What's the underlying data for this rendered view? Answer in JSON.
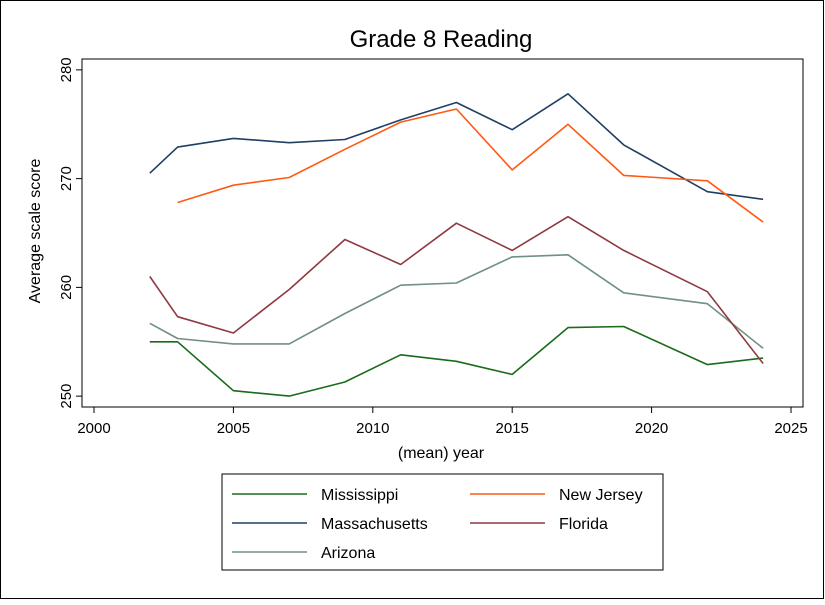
{
  "chart_data": {
    "type": "line",
    "title": "Grade 8 Reading",
    "xlabel": "(mean) year",
    "ylabel": "Average scale score",
    "xlim": [
      2000,
      2025
    ],
    "ylim": [
      249,
      281
    ],
    "xticks": [
      2000,
      2005,
      2010,
      2015,
      2020,
      2025
    ],
    "yticks": [
      250,
      260,
      270,
      280
    ],
    "grid": false,
    "legend_position": "bottom",
    "series": [
      {
        "name": "Mississippi",
        "color": "#1a6b1a",
        "x": [
          2002,
          2003,
          2005,
          2007,
          2009,
          2011,
          2013,
          2015,
          2017,
          2019,
          2022,
          2024
        ],
        "y": [
          255.0,
          255.0,
          250.5,
          250.0,
          251.3,
          253.8,
          253.2,
          252.0,
          256.3,
          256.4,
          252.9,
          253.5
        ]
      },
      {
        "name": "Massachusetts",
        "color": "#1f3f63",
        "x": [
          2002,
          2003,
          2005,
          2007,
          2009,
          2011,
          2013,
          2015,
          2017,
          2019,
          2022,
          2024
        ],
        "y": [
          270.5,
          272.9,
          273.7,
          273.3,
          273.6,
          275.4,
          277.0,
          274.5,
          277.8,
          273.1,
          268.8,
          268.1
        ]
      },
      {
        "name": "Arizona",
        "color": "#6f9083",
        "x": [
          2002,
          2003,
          2005,
          2007,
          2009,
          2011,
          2013,
          2015,
          2017,
          2019,
          2022,
          2024
        ],
        "y": [
          256.7,
          255.3,
          254.8,
          254.8,
          257.6,
          260.2,
          260.4,
          262.8,
          263.0,
          259.5,
          258.5,
          254.4
        ]
      },
      {
        "name": "New Jersey",
        "color": "#ff5a14",
        "x": [
          2003,
          2005,
          2007,
          2009,
          2011,
          2013,
          2015,
          2017,
          2019,
          2022,
          2024
        ],
        "y": [
          267.8,
          269.4,
          270.1,
          272.7,
          275.2,
          276.4,
          270.8,
          275.0,
          270.3,
          269.8,
          266.0
        ]
      },
      {
        "name": "Florida",
        "color": "#8e3a40",
        "x": [
          2002,
          2003,
          2005,
          2007,
          2009,
          2011,
          2013,
          2015,
          2017,
          2019,
          2022,
          2024
        ],
        "y": [
          261.0,
          257.3,
          255.8,
          259.8,
          264.4,
          262.1,
          265.9,
          263.4,
          266.5,
          263.4,
          259.6,
          253.0
        ]
      }
    ]
  }
}
